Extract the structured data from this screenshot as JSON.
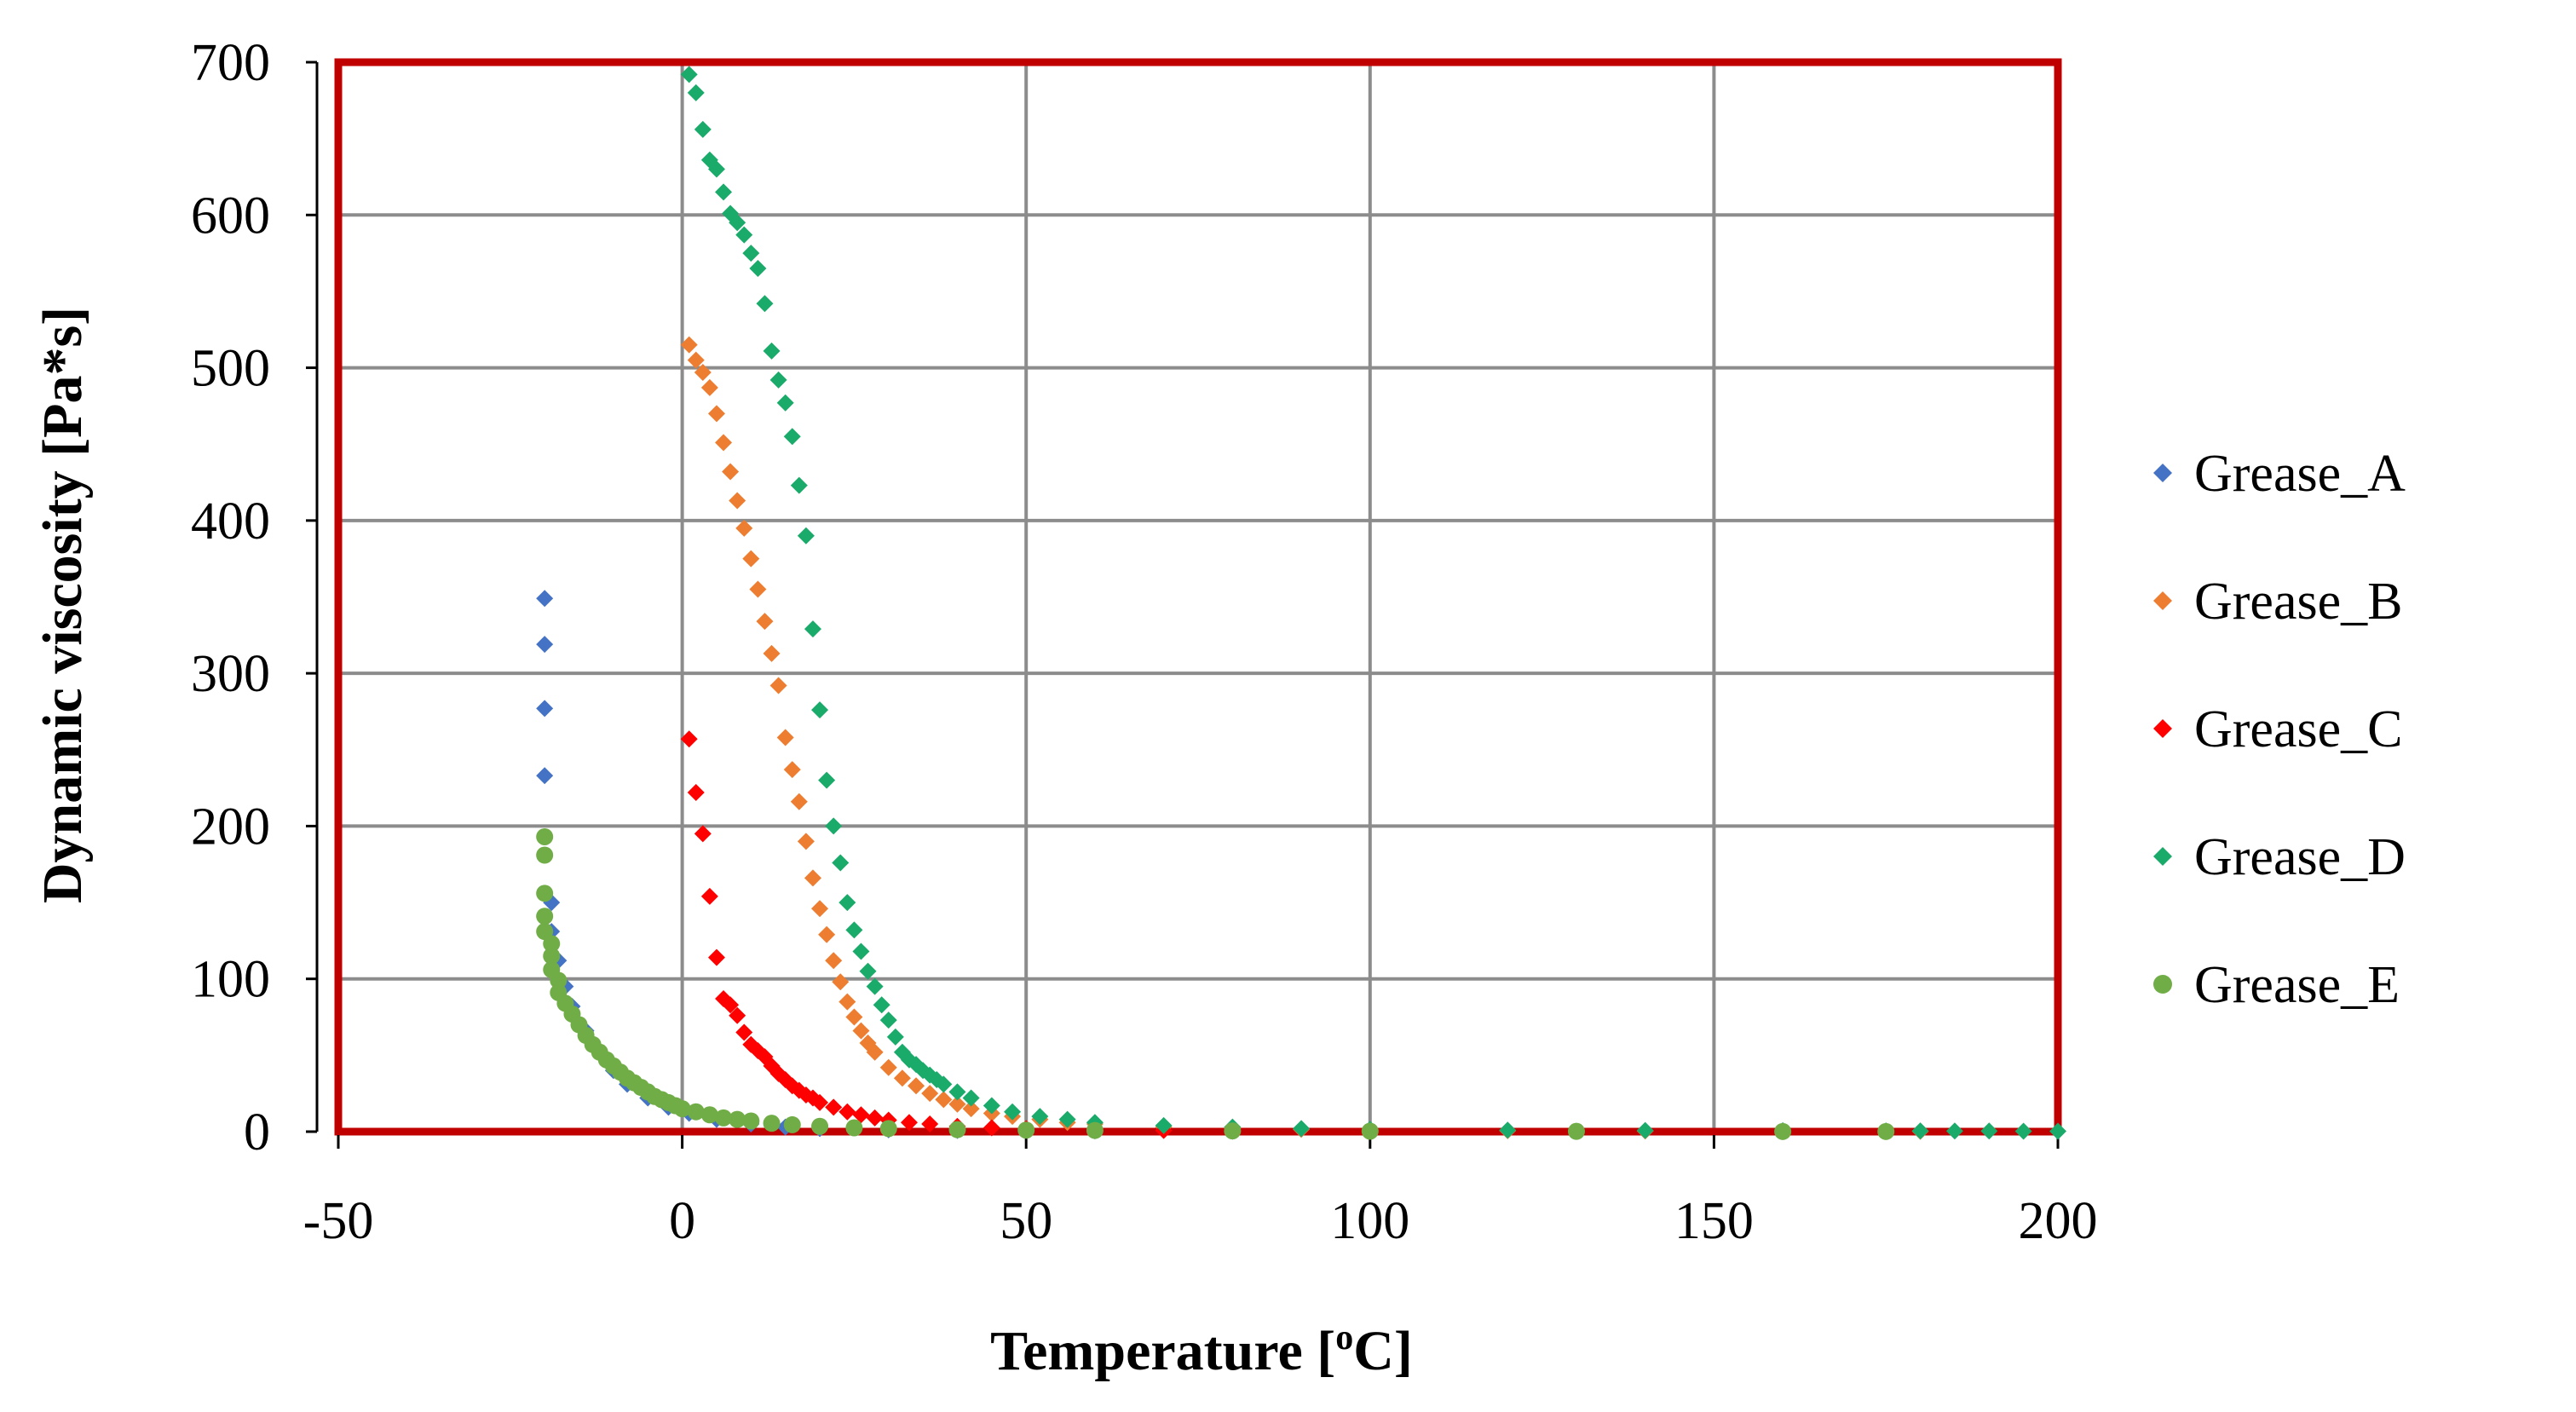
{
  "chart_data": {
    "type": "scatter",
    "title": "",
    "xlabel": "Temperature [",
    "xlabel_sup": "o",
    "xlabel_end": "C]",
    "ylabel": "Dynamic viscosity [Pa*s]",
    "xlim": [
      -50,
      200
    ],
    "ylim": [
      0,
      700
    ],
    "xticks": [
      -50,
      0,
      50,
      100,
      150,
      200
    ],
    "yticks": [
      0,
      100,
      200,
      300,
      400,
      500,
      600,
      700
    ],
    "xtick_labels": [
      "-50",
      "0",
      "50",
      "100",
      "150",
      "200"
    ],
    "ytick_labels": [
      "0",
      "100",
      "200",
      "300",
      "400",
      "500",
      "600",
      "700"
    ],
    "grid": true,
    "legend_position": "right",
    "colors": {
      "frame": "#c00000",
      "grid": "#8c8c8c",
      "axis": "#000000"
    },
    "series": [
      {
        "name": "Grease_A",
        "color": "#4472c4",
        "marker": "diamond",
        "x": [
          -20,
          -20,
          -20,
          -20,
          -19,
          -19,
          -18,
          -17,
          -16,
          -14,
          -12,
          -10,
          -8,
          -5,
          -2,
          1,
          5,
          10,
          15,
          20,
          30,
          40,
          60,
          80,
          100,
          130,
          160
        ],
        "y": [
          349,
          319,
          277,
          233,
          150,
          131,
          112,
          95,
          82,
          66,
          52,
          40,
          31,
          22,
          16,
          12,
          8,
          5,
          3,
          2,
          1.2,
          0.8,
          0.5,
          0.3,
          0.2,
          0.15,
          0.1
        ]
      },
      {
        "name": "Grease_B",
        "color": "#ed7d31",
        "marker": "diamond",
        "x": [
          1,
          2,
          3,
          4,
          5,
          6,
          7,
          8,
          9,
          10,
          11,
          12,
          13,
          14,
          15,
          16,
          17,
          18,
          19,
          20,
          21,
          22,
          23,
          24,
          25,
          26,
          27,
          28,
          30,
          32,
          34,
          36,
          38,
          40,
          42,
          45,
          48,
          52,
          56,
          60,
          70,
          80,
          90,
          100,
          120,
          140,
          160,
          180
        ],
        "y": [
          515,
          505,
          497,
          487,
          470,
          451,
          432,
          413,
          395,
          375,
          355,
          334,
          313,
          292,
          258,
          237,
          216,
          190,
          166,
          146,
          129,
          112,
          98,
          85,
          75,
          66,
          58,
          52,
          42,
          35,
          30,
          25,
          21,
          18,
          15,
          12,
          10,
          8,
          6,
          5,
          3,
          2,
          1.5,
          1,
          0.6,
          0.4,
          0.3,
          0.2
        ]
      },
      {
        "name": "Grease_C",
        "color": "#ff0000",
        "marker": "diamond",
        "x": [
          1,
          2,
          3,
          4,
          5,
          6,
          7,
          8,
          9,
          10,
          11,
          12,
          13,
          14,
          15,
          16,
          17,
          18,
          19,
          20,
          22,
          24,
          26,
          28,
          30,
          33,
          36,
          40,
          45,
          50,
          60,
          70,
          80
        ],
        "y": [
          257,
          222,
          195,
          154,
          114,
          87,
          83,
          76,
          65,
          57,
          53,
          49,
          43,
          38,
          34,
          30,
          27,
          24,
          22,
          19,
          16,
          13,
          11,
          9,
          7.5,
          6,
          5,
          3.5,
          2.5,
          2,
          1.2,
          0.8,
          0.5
        ]
      },
      {
        "name": "Grease_D",
        "color": "#1aaa6a",
        "marker": "diamond",
        "x": [
          1,
          2,
          3,
          4,
          5,
          6,
          7,
          8,
          9,
          10,
          11,
          12,
          13,
          14,
          15,
          16,
          17,
          18,
          19,
          20,
          21,
          22,
          23,
          24,
          25,
          26,
          27,
          28,
          29,
          30,
          31,
          32,
          33,
          34,
          35,
          36,
          37,
          38,
          40,
          42,
          45,
          48,
          52,
          56,
          60,
          70,
          80,
          90,
          100,
          120,
          140,
          160,
          175,
          180,
          185,
          190,
          195,
          200
        ],
        "y": [
          692,
          680,
          656,
          636,
          630,
          615,
          601,
          595,
          587,
          575,
          565,
          542,
          511,
          492,
          477,
          455,
          423,
          390,
          329,
          276,
          230,
          200,
          176,
          150,
          132,
          118,
          105,
          95,
          83,
          73,
          62,
          52,
          47,
          44,
          40,
          37,
          34,
          31,
          26,
          22,
          17,
          13,
          10,
          8,
          6,
          4,
          3,
          2,
          1.5,
          1,
          0.8,
          0.6,
          0.5,
          0.5,
          0.4,
          0.4,
          0.3,
          0.3
        ]
      },
      {
        "name": "Grease_E",
        "color": "#70ad47",
        "marker": "circle",
        "x": [
          -20,
          -20,
          -20,
          -20,
          -20,
          -19,
          -19,
          -19,
          -18,
          -18,
          -17,
          -16,
          -15,
          -14,
          -13,
          -12,
          -11,
          -10,
          -9,
          -8,
          -7,
          -6,
          -5,
          -4,
          -3,
          -2,
          -1,
          0,
          2,
          4,
          6,
          8,
          10,
          13,
          16,
          20,
          25,
          30,
          40,
          50,
          60,
          80,
          100,
          130,
          160,
          175
        ],
        "y": [
          193,
          181,
          156,
          141,
          131,
          123,
          115,
          106,
          99,
          91,
          84,
          77,
          70,
          63,
          57,
          52,
          47,
          43,
          39,
          35,
          32,
          29,
          26,
          23,
          21,
          19,
          17,
          15,
          13,
          11,
          9,
          8,
          7,
          5.5,
          4.5,
          3.5,
          2.5,
          2,
          1.3,
          1,
          0.8,
          0.5,
          0.3,
          0.2,
          0.1,
          0.1
        ]
      }
    ]
  }
}
